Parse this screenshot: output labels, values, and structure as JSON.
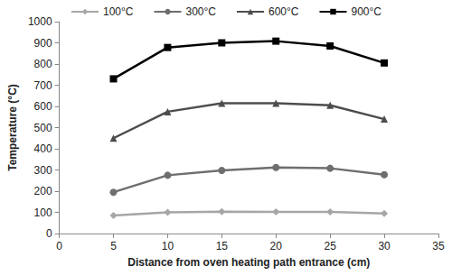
{
  "chart_data": {
    "type": "line",
    "x_label": "Distance from oven heating path entrance (cm)",
    "y_label": "Temperature (°C)",
    "x": [
      5,
      10,
      15,
      20,
      25,
      30
    ],
    "series": [
      {
        "name": "100°C",
        "color": "#a6a6a6",
        "marker": "diamond",
        "line_style": "solid",
        "values": [
          85,
          100,
          103,
          102,
          102,
          95
        ]
      },
      {
        "name": "300°C",
        "color": "#6e6e6e",
        "marker": "circle",
        "line_style": "solid",
        "values": [
          195,
          275,
          298,
          312,
          308,
          278
        ]
      },
      {
        "name": "600°C",
        "color": "#4d4d4d",
        "marker": "triangle",
        "line_style": "solid",
        "values": [
          450,
          575,
          615,
          615,
          605,
          540
        ]
      },
      {
        "name": "900°C",
        "color": "#000000",
        "marker": "square",
        "line_style": "solid",
        "values": [
          730,
          878,
          900,
          908,
          885,
          805
        ]
      }
    ],
    "xlim": [
      0,
      35
    ],
    "xticks": [
      0,
      5,
      10,
      15,
      20,
      25,
      30,
      35
    ],
    "ylim": [
      0,
      1000
    ],
    "yticks": [
      0,
      100,
      200,
      300,
      400,
      500,
      600,
      700,
      800,
      900,
      1000
    ],
    "grid": false,
    "legend": "top"
  }
}
